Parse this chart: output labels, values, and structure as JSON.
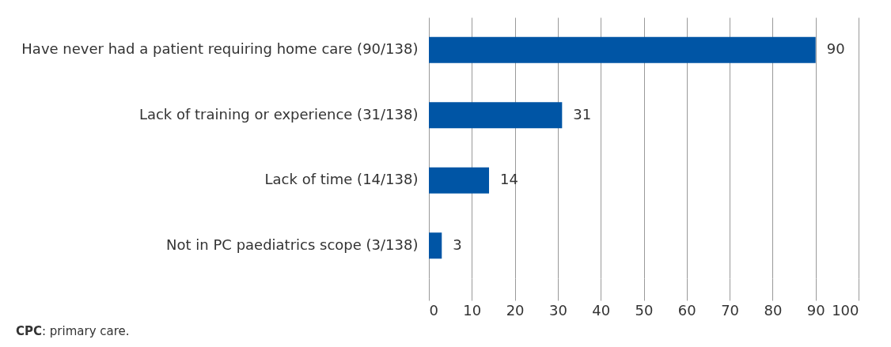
{
  "chart_data": {
    "type": "bar",
    "orientation": "horizontal",
    "categories": [
      "Have never had a patient requiring home care (90/138)",
      "Lack of training or experience (31/138)",
      "Lack of time (14/138)",
      "Not in PC paediatrics scope (3/138)"
    ],
    "values": [
      90,
      31,
      14,
      3
    ],
    "color": "#0055a5",
    "xlim": [
      0,
      100
    ],
    "xticks": [
      0,
      10,
      20,
      30,
      40,
      50,
      60,
      70,
      80,
      90,
      100
    ],
    "grid": "x",
    "data_labels": true,
    "annotations": [
      "CPC: primary care."
    ]
  }
}
